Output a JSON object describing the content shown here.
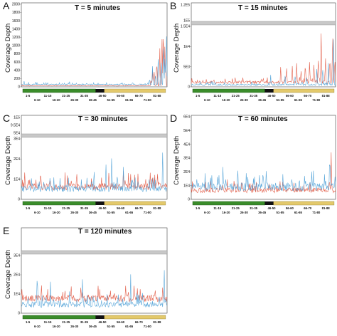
{
  "colors": {
    "red": "#e0523c",
    "blue": "#4a9fd6",
    "green": "#3a8c2a",
    "yellow": "#e3c96b",
    "black": "#111111",
    "break": "#c8c8c8"
  },
  "chart_data": [
    {
      "letter": "A",
      "title": "T = 5 minutes",
      "type": "line",
      "ylabel": "Coverage Depth",
      "yticks": [
        "2000",
        "1800",
        "1600",
        "1400",
        "1200",
        "1000",
        "800",
        "600",
        "400",
        "200",
        "0"
      ],
      "broken_axis": false,
      "series": [
        {
          "color": "red",
          "baseline": 0.01,
          "noise": 0.006,
          "spikes": [
            [
              0.05,
              0.03
            ],
            [
              0.4,
              0.02
            ],
            [
              0.83,
              0.04
            ],
            [
              0.89,
              0.12
            ],
            [
              0.9,
              0.2
            ],
            [
              0.91,
              0.3
            ],
            [
              0.93,
              0.45
            ],
            [
              0.95,
              0.65
            ],
            [
              0.965,
              0.75
            ],
            [
              0.975,
              0.9
            ],
            [
              0.985,
              0.6
            ],
            [
              0.99,
              0.35
            ]
          ]
        },
        {
          "color": "blue",
          "baseline": 0.02,
          "noise": 0.015,
          "spikes": [
            [
              0.02,
              0.08
            ],
            [
              0.05,
              0.07
            ],
            [
              0.1,
              0.06
            ],
            [
              0.17,
              0.06
            ],
            [
              0.28,
              0.06
            ],
            [
              0.33,
              0.09
            ],
            [
              0.42,
              0.05
            ],
            [
              0.88,
              0.15
            ],
            [
              0.9,
              0.25
            ],
            [
              0.92,
              0.2
            ],
            [
              0.94,
              0.45
            ],
            [
              0.96,
              0.5
            ],
            [
              0.975,
              0.75
            ],
            [
              0.985,
              0.55
            ],
            [
              0.995,
              0.85
            ]
          ]
        }
      ],
      "region_labels_top": [
        "1-5",
        "11-15",
        "21-25",
        "31-35",
        "46-50",
        "56-60",
        "66-70",
        "81-88"
      ],
      "region_labels_bottom": [
        "6-10",
        "16-20",
        "26-30",
        "36-45",
        "51-55",
        "61-65",
        "71-80"
      ]
    },
    {
      "letter": "B",
      "title": "T = 15 minutes",
      "type": "line",
      "ylabel": "Coverage Depth",
      "yticks_top": [
        "1.2E5",
        "1E5"
      ],
      "yticks": [
        "1.5E4",
        "1E4",
        "5E3",
        "0"
      ],
      "broken_axis": true,
      "series": [
        {
          "color": "red",
          "baseline": 0.05,
          "noise": 0.05,
          "spikes": [
            [
              0.62,
              0.4
            ],
            [
              0.66,
              0.42
            ],
            [
              0.7,
              0.45
            ],
            [
              0.73,
              0.5
            ],
            [
              0.76,
              0.45
            ],
            [
              0.79,
              0.55
            ],
            [
              0.82,
              0.5
            ],
            [
              0.85,
              0.6
            ],
            [
              0.88,
              0.75
            ],
            [
              0.9,
              0.9
            ],
            [
              0.93,
              0.8
            ],
            [
              0.96,
              0.7
            ],
            [
              0.98,
              0.95
            ],
            [
              0.995,
              0.6
            ]
          ]
        },
        {
          "color": "blue",
          "baseline": 0.02,
          "noise": 0.03,
          "spikes": [
            [
              0.55,
              0.2
            ],
            [
              0.65,
              0.25
            ],
            [
              0.72,
              0.3
            ],
            [
              0.8,
              0.25
            ],
            [
              0.87,
              0.35
            ],
            [
              0.91,
              0.5
            ],
            [
              0.95,
              0.45
            ],
            [
              0.985,
              0.85
            ]
          ]
        }
      ],
      "region_labels_top": [
        "1-5",
        "11-15",
        "21-25",
        "31-35",
        "46-50",
        "56-60",
        "66-70",
        "81-88"
      ],
      "region_labels_bottom": [
        "6-10",
        "16-20",
        "26-30",
        "36-45",
        "51-55",
        "61-65",
        "71-80"
      ]
    },
    {
      "letter": "C",
      "title": "T = 30 minutes",
      "type": "line",
      "ylabel": "Coverage Depth",
      "yticks_top": [
        "1E5",
        "9.5E4",
        "5E4"
      ],
      "yticks": [
        "3E4",
        "2E4",
        "1E4",
        "0"
      ],
      "broken_axis": true,
      "series": [
        {
          "color": "red",
          "baseline": 0.15,
          "noise": 0.12,
          "spikes": [
            [
              0.05,
              0.3
            ],
            [
              0.1,
              0.35
            ],
            [
              0.2,
              0.35
            ],
            [
              0.35,
              0.3
            ],
            [
              0.45,
              0.4
            ],
            [
              0.5,
              0.35
            ],
            [
              0.55,
              0.45
            ],
            [
              0.6,
              0.55
            ],
            [
              0.7,
              0.5
            ],
            [
              0.75,
              0.55
            ],
            [
              0.8,
              0.5
            ],
            [
              0.9,
              0.45
            ],
            [
              0.95,
              0.3
            ]
          ]
        },
        {
          "color": "blue",
          "baseline": 0.12,
          "noise": 0.1,
          "spikes": [
            [
              0.3,
              0.35
            ],
            [
              0.45,
              0.45
            ],
            [
              0.5,
              0.55
            ],
            [
              0.58,
              0.75
            ],
            [
              0.62,
              0.9
            ],
            [
              0.66,
              0.6
            ],
            [
              0.7,
              0.55
            ],
            [
              0.78,
              0.5
            ],
            [
              0.8,
              0.4
            ],
            [
              0.97,
              0.95
            ]
          ]
        }
      ],
      "region_labels_top": [
        "1-5",
        "11-15",
        "21-25",
        "31-35",
        "46-50",
        "56-60",
        "66-70",
        "81-88"
      ],
      "region_labels_bottom": [
        "6-10",
        "16-20",
        "26-30",
        "36-45",
        "51-55",
        "61-65",
        "71-80"
      ]
    },
    {
      "letter": "D",
      "title": "T = 60 minutes",
      "type": "line",
      "ylabel": "Coverage Depth",
      "yticks": [
        "6E4",
        "5E4",
        "4E4",
        "3E4",
        "2E4",
        "1E4",
        "0"
      ],
      "broken_axis": false,
      "series": [
        {
          "color": "red",
          "baseline": 0.08,
          "noise": 0.06,
          "spikes": [
            [
              0.1,
              0.15
            ],
            [
              0.2,
              0.2
            ],
            [
              0.25,
              0.25
            ],
            [
              0.3,
              0.22
            ],
            [
              0.35,
              0.25
            ],
            [
              0.4,
              0.2
            ],
            [
              0.45,
              0.15
            ],
            [
              0.5,
              0.1
            ],
            [
              0.97,
              0.7
            ]
          ]
        },
        {
          "color": "blue",
          "baseline": 0.1,
          "noise": 0.1,
          "spikes": [
            [
              0.05,
              0.15
            ],
            [
              0.12,
              0.25
            ],
            [
              0.18,
              0.35
            ],
            [
              0.22,
              0.45
            ],
            [
              0.24,
              0.4
            ],
            [
              0.28,
              0.35
            ],
            [
              0.32,
              0.3
            ],
            [
              0.38,
              0.3
            ],
            [
              0.42,
              0.25
            ],
            [
              0.5,
              0.3
            ],
            [
              0.96,
              0.7
            ]
          ]
        }
      ],
      "region_labels_top": [
        "1-5",
        "11-15",
        "21-25",
        "31-35",
        "46-50",
        "56-60",
        "66-70",
        "81-88"
      ],
      "region_labels_bottom": [
        "6-10",
        "16-20",
        "26-30",
        "36-45",
        "51-55",
        "61-65",
        "71-80"
      ]
    },
    {
      "letter": "E",
      "title": "T = 120 minutes",
      "type": "line",
      "ylabel": "Coverage Depth",
      "yticks": [
        "3E4",
        "2E4",
        "1E4",
        "0"
      ],
      "broken_axis": true,
      "series": [
        {
          "color": "red",
          "baseline": 0.2,
          "noise": 0.12,
          "spikes": [
            [
              0.05,
              0.4
            ],
            [
              0.1,
              0.35
            ],
            [
              0.2,
              0.3
            ],
            [
              0.3,
              0.3
            ],
            [
              0.4,
              0.3
            ],
            [
              0.5,
              0.35
            ],
            [
              0.6,
              0.3
            ],
            [
              0.7,
              0.3
            ],
            [
              0.8,
              0.3
            ],
            [
              0.97,
              0.75
            ]
          ]
        },
        {
          "color": "blue",
          "baseline": 0.1,
          "noise": 0.1,
          "spikes": [
            [
              0.11,
              0.95
            ],
            [
              0.2,
              0.55
            ],
            [
              0.33,
              0.45
            ],
            [
              0.42,
              0.7
            ],
            [
              0.5,
              0.35
            ],
            [
              0.62,
              0.3
            ],
            [
              0.75,
              0.7
            ],
            [
              0.82,
              0.4
            ],
            [
              0.9,
              0.3
            ],
            [
              0.98,
              0.9
            ]
          ]
        }
      ],
      "region_labels_top": [
        "1-5",
        "11-15",
        "21-25",
        "31-35",
        "46-50",
        "56-60",
        "66-70",
        "81-88"
      ],
      "region_labels_bottom": [
        "6-10",
        "16-20",
        "26-30",
        "36-45",
        "51-55",
        "61-65",
        "71-80"
      ]
    }
  ]
}
